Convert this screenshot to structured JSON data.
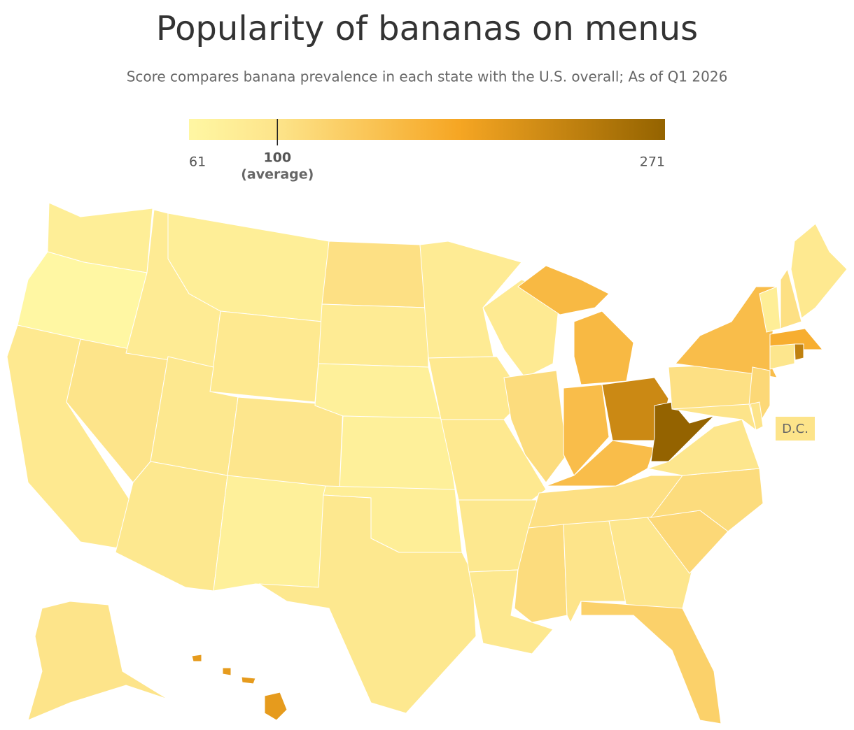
{
  "chart_data": {
    "type": "choropleth",
    "title": "Popularity of bananas on menus",
    "subtitle": "Score compares banana prevalence in each state with the U.S. overall; As of Q1 2026",
    "legend": {
      "lim": [
        61,
        271
      ],
      "ticks": [
        61,
        100,
        271
      ],
      "tick_note": "(average)",
      "colorscale": [
        [
          61,
          "#fff7a3"
        ],
        [
          100,
          "#fde48a"
        ],
        [
          180,
          "#f6a623"
        ],
        [
          271,
          "#946300"
        ]
      ]
    },
    "values": [
      80,
      61,
      90,
      100,
      85,
      80,
      90,
      92,
      95,
      92,
      75,
      105,
      85,
      75,
      75,
      80,
      92,
      85,
      90,
      90,
      92,
      92,
      88,
      110,
      155,
      150,
      220,
      150,
      271,
      105,
      110,
      100,
      95,
      125,
      115,
      110,
      95,
      105,
      150,
      115,
      100,
      100,
      80,
      105,
      90,
      170,
      95,
      230,
      100,
      195,
      100
    ],
    "dc_label": "D.C."
  }
}
